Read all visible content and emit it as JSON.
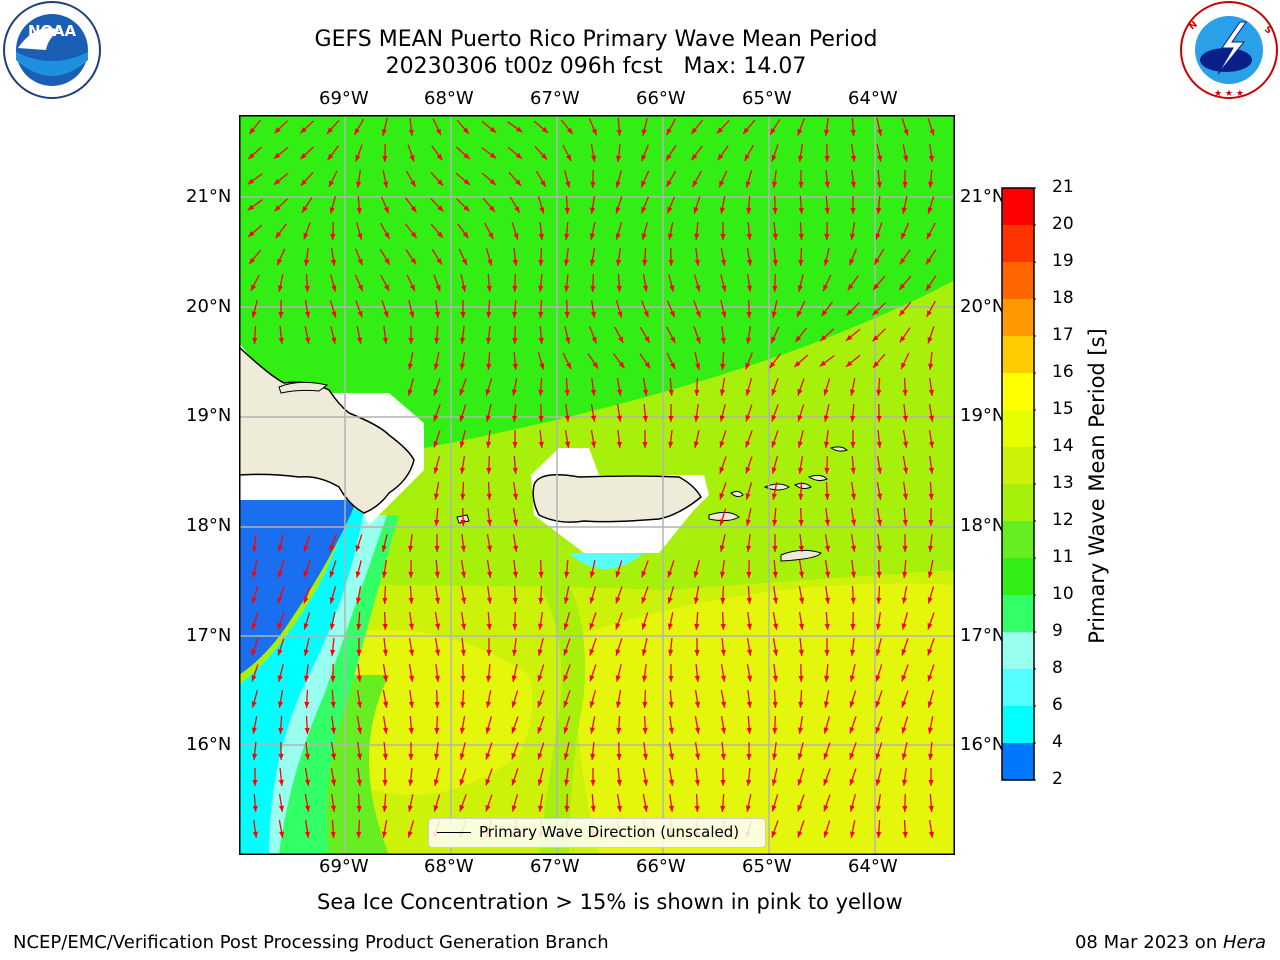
{
  "header": {
    "title_line1": "GEFS MEAN Puerto Rico Primary Wave Mean Period",
    "title_line2": "20230306 t00z 096h fcst   Max: 14.07"
  },
  "logos": {
    "left": {
      "name": "NOAA",
      "text": "NOAA",
      "ring_text": "NATIONAL OCEANIC AND ATMOSPHERIC ADMINISTRATION · U.S. DEPARTMENT OF COMMERCE"
    },
    "right": {
      "name": "National Weather Service",
      "ring_text": "NATIONAL WEATHER SERVICE"
    }
  },
  "map": {
    "lon_labels": [
      "69°W",
      "68°W",
      "67°W",
      "66°W",
      "65°W",
      "64°W"
    ],
    "lat_labels": [
      "21°N",
      "20°N",
      "19°N",
      "18°N",
      "17°N",
      "16°N"
    ],
    "colors": {
      "land": "#efebd9",
      "green_dark": "#33ee14",
      "green_light": "#a6f00c",
      "yellow_green": "#ccf20a",
      "yellow": "#e4f60c",
      "cyan": "#00ffff",
      "blue": "#1a6ef0",
      "arrow": "#ff0000",
      "grid": "#b3b3b3"
    },
    "legend_label": "Primary Wave Direction (unscaled)"
  },
  "colorbar": {
    "label": "Primary Wave Mean Period [s]",
    "ticks": [
      "21",
      "20",
      "19",
      "18",
      "17",
      "16",
      "15",
      "14",
      "13",
      "12",
      "11",
      "10",
      "9",
      "8",
      "6",
      "4",
      "2"
    ],
    "colors": [
      "#ff0000",
      "#ff3300",
      "#ff6600",
      "#ff9900",
      "#ffcc00",
      "#ffff00",
      "#e6ff00",
      "#ccf20a",
      "#a6f00c",
      "#66ee22",
      "#33ee14",
      "#33ff66",
      "#99ffee",
      "#55ffff",
      "#00ffff",
      "#0077ff",
      "#0000ff"
    ]
  },
  "caption": "Sea Ice Concentration > 15% is shown in pink to yellow",
  "footer": {
    "left": "NCEP/EMC/Verification Post Processing Product Generation Branch",
    "right_date": "08 Mar 2023 on ",
    "right_host": "Hera"
  }
}
